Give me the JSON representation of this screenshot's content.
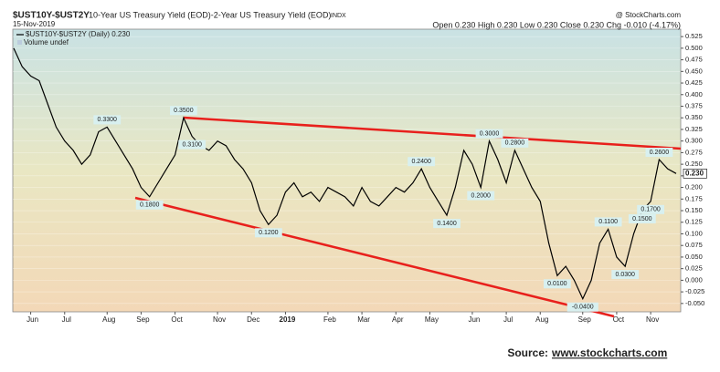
{
  "chart_data": {
    "type": "line",
    "symbol": "$UST10Y-$UST2Y",
    "title": "10-Year US Treasury Yield (EOD)-2-Year US Treasury Yield (EOD)",
    "exchange": "INDX",
    "date": "15-Nov-2019",
    "credit": "@ StockCharts.com",
    "quote": "Open 0.230  High 0.230  Low 0.230  Close 0.230  Chg -0.010 (-4.17%)",
    "volume_legend": "Volume undef",
    "source_prefix": "Source:",
    "source_url": "www.stockcharts.com",
    "categories": [
      null,
      null,
      "Jun",
      null,
      null,
      null,
      "Jul",
      null,
      null,
      null,
      null,
      "Aug",
      null,
      null,
      null,
      "Sep",
      null,
      null,
      null,
      "Oct",
      null,
      null,
      null,
      null,
      "Nov",
      null,
      null,
      null,
      "Dec",
      null,
      null,
      null,
      "2019",
      null,
      null,
      null,
      null,
      "Feb",
      null,
      null,
      null,
      "Mar",
      null,
      null,
      null,
      "Apr",
      null,
      null,
      null,
      "May",
      null,
      null,
      null,
      null,
      "Jun",
      null,
      null,
      null,
      "Jul",
      null,
      null,
      null,
      "Aug",
      null,
      null,
      null,
      null,
      "Sep",
      null,
      null,
      null,
      "Oct",
      null,
      null,
      null,
      "Nov",
      null,
      null,
      null
    ],
    "series": [
      {
        "name": "$UST10Y-$UST2Y (Daily) 0.230",
        "color": "#000000",
        "values": [
          0.5,
          0.46,
          0.44,
          0.43,
          0.38,
          0.33,
          0.3,
          0.28,
          0.25,
          0.27,
          0.32,
          0.33,
          0.3,
          0.27,
          0.24,
          0.2,
          0.18,
          0.21,
          0.24,
          0.27,
          0.35,
          0.31,
          0.29,
          0.28,
          0.3,
          0.29,
          0.26,
          0.24,
          0.21,
          0.15,
          0.12,
          0.14,
          0.19,
          0.21,
          0.18,
          0.19,
          0.17,
          0.2,
          0.19,
          0.18,
          0.16,
          0.2,
          0.17,
          0.16,
          0.18,
          0.2,
          0.19,
          0.21,
          0.24,
          0.2,
          0.17,
          0.14,
          0.2,
          0.28,
          0.25,
          0.2,
          0.3,
          0.26,
          0.21,
          0.28,
          0.24,
          0.2,
          0.17,
          0.08,
          0.01,
          0.03,
          0.0,
          -0.04,
          0.0,
          0.08,
          0.11,
          0.05,
          0.03,
          0.1,
          0.15,
          0.17,
          0.26,
          0.24,
          0.23
        ],
        "value_labels": [
          null,
          null,
          null,
          null,
          null,
          null,
          null,
          null,
          null,
          null,
          null,
          "0.3300",
          null,
          null,
          null,
          null,
          "0.1800",
          null,
          null,
          null,
          "0.3500",
          "0.3100",
          null,
          null,
          null,
          null,
          null,
          null,
          null,
          null,
          "0.1200",
          null,
          null,
          null,
          null,
          null,
          null,
          null,
          null,
          null,
          null,
          null,
          null,
          null,
          null,
          null,
          null,
          null,
          "0.2400",
          null,
          null,
          "0.1400",
          null,
          null,
          null,
          "0.2000",
          "0.3000",
          null,
          null,
          "0.2800",
          null,
          null,
          null,
          null,
          "0.0100",
          null,
          null,
          "-0.0400",
          null,
          null,
          "0.1100",
          null,
          "0.0300",
          null,
          "0.1500",
          "0.1700",
          "0.2600",
          null,
          "0.230"
        ]
      }
    ],
    "ylim": [
      -0.068,
      0.541
    ],
    "yticks": [
      {
        "value": -0.05,
        "label": "-0.050"
      },
      {
        "value": -0.025,
        "label": "-0.025"
      },
      {
        "value": 0,
        "label": "0.000"
      },
      {
        "value": 0.025,
        "label": "0.025"
      },
      {
        "value": 0.05,
        "label": "0.050"
      },
      {
        "value": 0.075,
        "label": "0.075"
      },
      {
        "value": 0.1,
        "label": "0.100"
      },
      {
        "value": 0.125,
        "label": "0.125"
      },
      {
        "value": 0.15,
        "label": "0.150"
      },
      {
        "value": 0.175,
        "label": "0.175"
      },
      {
        "value": 0.2,
        "label": "0.200"
      },
      {
        "value": 0.225,
        "label": "0.225"
      },
      {
        "value": 0.25,
        "label": "0.250"
      },
      {
        "value": 0.275,
        "label": "0.275"
      },
      {
        "value": 0.3,
        "label": "0.300"
      },
      {
        "value": 0.325,
        "label": "0.325"
      },
      {
        "value": 0.35,
        "label": "0.350"
      },
      {
        "value": 0.375,
        "label": "0.375"
      },
      {
        "value": 0.4,
        "label": "0.400"
      },
      {
        "value": 0.425,
        "label": "0.425"
      },
      {
        "value": 0.45,
        "label": "0.450"
      },
      {
        "value": 0.475,
        "label": "0.475"
      },
      {
        "value": 0.5,
        "label": "0.500"
      },
      {
        "value": 0.525,
        "label": "0.525"
      }
    ],
    "grid": true
  }
}
